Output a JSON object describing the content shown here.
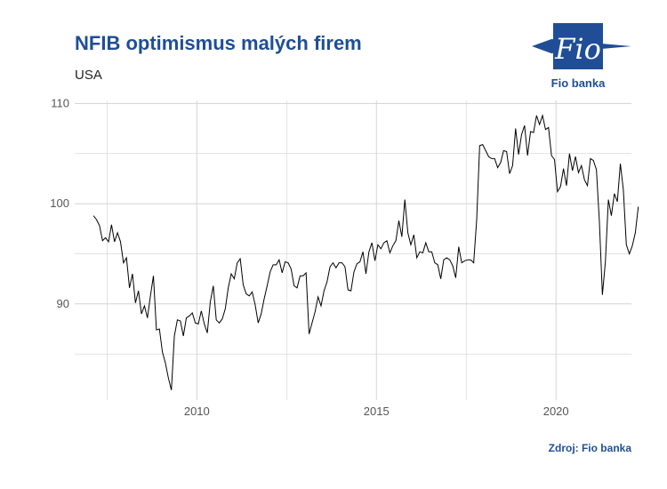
{
  "header": {
    "title": "NFIB optimismus malých firem",
    "subtitle": "USA"
  },
  "logo": {
    "text": "Fio",
    "caption": "Fio banka"
  },
  "footer": {
    "source": "Zdroj: Fio banka"
  },
  "colors": {
    "title": "#1f4e96",
    "line": "#000000",
    "grid": "#d3d3d3"
  },
  "chart_data": {
    "type": "line",
    "title": "NFIB optimismus malých firem",
    "subtitle": "USA",
    "xlabel": "",
    "ylabel": "",
    "xlim": [
      2006.6,
      2022.1
    ],
    "ylim": [
      80.4,
      110.3
    ],
    "x_ticks": [
      2010,
      2015,
      2020
    ],
    "y_ticks": [
      90,
      100,
      110
    ],
    "grid": true,
    "legend": "none",
    "series": [
      {
        "start": 2007.125,
        "step": 0.0833333,
        "values": [
          98.8,
          98.4,
          97.8,
          96.3,
          96.6,
          96.2,
          97.9,
          96.2,
          97.1,
          96.2,
          94.1,
          94.6,
          91.6,
          93.0,
          90.1,
          91.3,
          89.0,
          89.8,
          88.6,
          90.8,
          92.8,
          87.4,
          87.5,
          85.2,
          84.1,
          82.6,
          81.4,
          86.8,
          88.4,
          88.3,
          86.8,
          88.6,
          88.8,
          89.1,
          88.1,
          88.0,
          89.3,
          88.0,
          87.1,
          90.2,
          91.8,
          88.4,
          88.1,
          88.5,
          89.5,
          91.6,
          93.0,
          92.5,
          94.1,
          94.5,
          91.9,
          91.0,
          90.8,
          91.2,
          89.9,
          88.1,
          89.0,
          90.5,
          91.8,
          93.2,
          93.9,
          93.9,
          94.4,
          93.1,
          94.2,
          94.1,
          93.5,
          91.8,
          91.6,
          92.8,
          92.8,
          93.1,
          87.0,
          88.1,
          89.2,
          90.7,
          89.8,
          91.3,
          92.2,
          93.7,
          94.1,
          93.6,
          94.1,
          94.1,
          93.7,
          91.4,
          91.3,
          93.2,
          94.0,
          94.2,
          95.2,
          93.0,
          95.2,
          96.1,
          94.3,
          95.9,
          95.5,
          96.1,
          96.3,
          95.1,
          95.8,
          96.3,
          98.3,
          96.7,
          100.4,
          97.1,
          95.9,
          96.9,
          94.6,
          95.2,
          95.1,
          96.1,
          95.2,
          95.2,
          94.1,
          93.9,
          92.5,
          94.4,
          94.6,
          94.4,
          93.8,
          92.6,
          95.7,
          94.1,
          94.3,
          94.4,
          94.4,
          94.1,
          98.4,
          105.8,
          105.9,
          105.3,
          104.7,
          104.5,
          104.5,
          103.6,
          104.1,
          105.3,
          105.2,
          103.0,
          103.8,
          107.5,
          104.9,
          106.9,
          107.8,
          104.8,
          107.2,
          107.1,
          108.8,
          107.9,
          108.8,
          107.4,
          107.6,
          104.8,
          104.4,
          101.2,
          101.7,
          103.5,
          101.8,
          105.0,
          103.3,
          104.7,
          103.1,
          103.8,
          102.4,
          101.8,
          104.5,
          104.3,
          103.4,
          98.2,
          90.9,
          94.2,
          100.4,
          98.8,
          101.0,
          100.2,
          104.0,
          101.4,
          95.9,
          95.0,
          95.8,
          97.1,
          99.7
        ]
      }
    ]
  }
}
